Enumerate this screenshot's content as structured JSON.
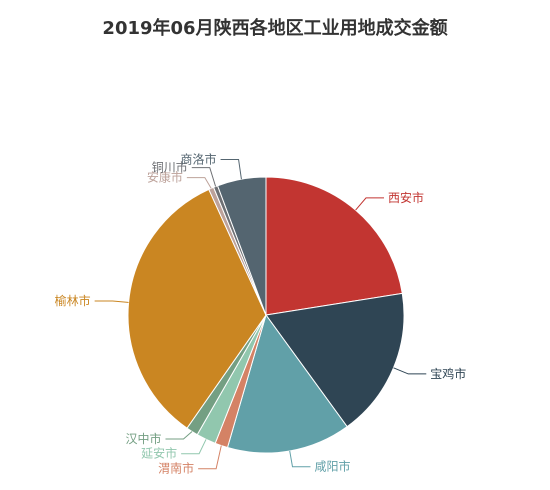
{
  "chart_data": {
    "type": "pie",
    "title": "2019年06月陕西各地区工业用地成交金额",
    "slices": [
      {
        "name": "西安市",
        "value": 22.5,
        "color": "#c23531"
      },
      {
        "name": "宝鸡市",
        "value": 17.5,
        "color": "#2f4554"
      },
      {
        "name": "咸阳市",
        "value": 14.5,
        "color": "#61a0a8"
      },
      {
        "name": "渭南市",
        "value": 1.5,
        "color": "#d48265"
      },
      {
        "name": "延安市",
        "value": 2.3,
        "color": "#91c7ae"
      },
      {
        "name": "汉中市",
        "value": 1.4,
        "color": "#749f83"
      },
      {
        "name": "榆林市",
        "value": 33.5,
        "color": "#ca8622"
      },
      {
        "name": "安康市",
        "value": 0.6,
        "color": "#bda29a"
      },
      {
        "name": "铜川市",
        "value": 0.5,
        "color": "#6e7074"
      },
      {
        "name": "商洛市",
        "value": 5.7,
        "color": "#546570"
      }
    ]
  }
}
